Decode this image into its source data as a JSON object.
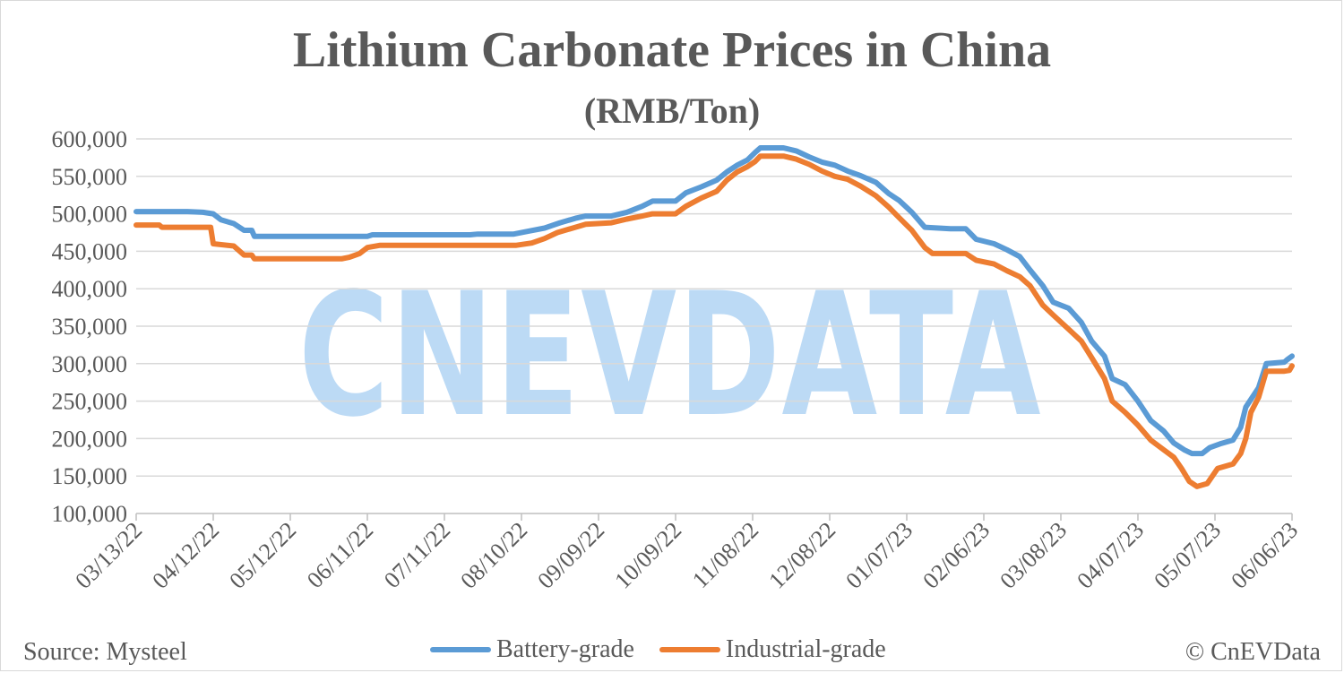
{
  "chart_data": {
    "type": "line",
    "title": "Lithium Carbonate Prices in China",
    "subtitle": "(RMB/Ton)",
    "ylim": [
      100000,
      600000
    ],
    "ytick_values": [
      100000,
      150000,
      200000,
      250000,
      300000,
      350000,
      400000,
      450000,
      500000,
      550000,
      600000
    ],
    "ytick_labels": [
      "100,000",
      "150,000",
      "200,000",
      "250,000",
      "300,000",
      "350,000",
      "400,000",
      "450,000",
      "500,000",
      "550,000",
      "600,000"
    ],
    "xlim": [
      "2022-03-13",
      "2023-06-06"
    ],
    "xtick_dates": [
      "2022-03-13",
      "2022-04-12",
      "2022-05-12",
      "2022-06-11",
      "2022-07-11",
      "2022-08-10",
      "2022-09-09",
      "2022-10-09",
      "2022-11-08",
      "2022-12-08",
      "2023-01-07",
      "2023-02-06",
      "2023-03-08",
      "2023-04-07",
      "2023-05-07",
      "2023-06-06"
    ],
    "xtick_labels": [
      "03/13/22",
      "04/12/22",
      "05/12/22",
      "06/11/22",
      "07/11/22",
      "08/10/22",
      "09/09/22",
      "10/09/22",
      "11/08/22",
      "12/08/22",
      "01/07/23",
      "02/06/23",
      "03/08/23",
      "04/07/23",
      "05/07/23",
      "06/06/23"
    ],
    "grid": true,
    "legend_position": "bottom",
    "series": [
      {
        "name": "Battery-grade",
        "color": "#5b9bd5",
        "points": [
          [
            "2022-03-13",
            503000
          ],
          [
            "2022-04-02",
            503000
          ],
          [
            "2022-04-08",
            502000
          ],
          [
            "2022-04-12",
            500000
          ],
          [
            "2022-04-15",
            492000
          ],
          [
            "2022-04-20",
            487000
          ],
          [
            "2022-04-24",
            478000
          ],
          [
            "2022-04-27",
            478000
          ],
          [
            "2022-04-28",
            470000
          ],
          [
            "2022-06-11",
            470000
          ],
          [
            "2022-06-13",
            472000
          ],
          [
            "2022-07-21",
            472000
          ],
          [
            "2022-07-24",
            473000
          ],
          [
            "2022-08-07",
            473000
          ],
          [
            "2022-08-13",
            477000
          ],
          [
            "2022-08-19",
            481000
          ],
          [
            "2022-08-25",
            488000
          ],
          [
            "2022-08-31",
            494000
          ],
          [
            "2022-09-04",
            497000
          ],
          [
            "2022-09-14",
            497000
          ],
          [
            "2022-09-20",
            502000
          ],
          [
            "2022-09-26",
            510000
          ],
          [
            "2022-09-30",
            517000
          ],
          [
            "2022-10-09",
            517000
          ],
          [
            "2022-10-13",
            528000
          ],
          [
            "2022-10-19",
            536000
          ],
          [
            "2022-10-25",
            545000
          ],
          [
            "2022-10-29",
            556000
          ],
          [
            "2022-11-02",
            565000
          ],
          [
            "2022-11-06",
            572000
          ],
          [
            "2022-11-09",
            582000
          ],
          [
            "2022-11-11",
            588000
          ],
          [
            "2022-11-20",
            588000
          ],
          [
            "2022-11-25",
            584000
          ],
          [
            "2022-11-30",
            576000
          ],
          [
            "2022-12-05",
            569000
          ],
          [
            "2022-12-10",
            565000
          ],
          [
            "2022-12-15",
            557000
          ],
          [
            "2022-12-20",
            551000
          ],
          [
            "2022-12-26",
            542000
          ],
          [
            "2022-12-31",
            527000
          ],
          [
            "2023-01-04",
            518000
          ],
          [
            "2023-01-09",
            502000
          ],
          [
            "2023-01-14",
            482000
          ],
          [
            "2023-01-24",
            480000
          ],
          [
            "2023-01-30",
            480000
          ],
          [
            "2023-02-03",
            466000
          ],
          [
            "2023-02-10",
            460000
          ],
          [
            "2023-02-15",
            452000
          ],
          [
            "2023-02-20",
            443000
          ],
          [
            "2023-02-24",
            425000
          ],
          [
            "2023-03-01",
            404000
          ],
          [
            "2023-03-05",
            382000
          ],
          [
            "2023-03-11",
            374000
          ],
          [
            "2023-03-16",
            355000
          ],
          [
            "2023-03-20",
            330000
          ],
          [
            "2023-03-25",
            310000
          ],
          [
            "2023-03-28",
            280000
          ],
          [
            "2023-04-02",
            272000
          ],
          [
            "2023-04-07",
            250000
          ],
          [
            "2023-04-12",
            224000
          ],
          [
            "2023-04-17",
            210000
          ],
          [
            "2023-04-21",
            194000
          ],
          [
            "2023-04-25",
            185000
          ],
          [
            "2023-04-28",
            180000
          ],
          [
            "2023-05-02",
            180000
          ],
          [
            "2023-05-05",
            188000
          ],
          [
            "2023-05-09",
            193000
          ],
          [
            "2023-05-14",
            198000
          ],
          [
            "2023-05-17",
            215000
          ],
          [
            "2023-05-19",
            242000
          ],
          [
            "2023-05-24",
            268000
          ],
          [
            "2023-05-27",
            300000
          ],
          [
            "2023-06-03",
            302000
          ],
          [
            "2023-06-04",
            305000
          ],
          [
            "2023-06-06",
            310000
          ]
        ]
      },
      {
        "name": "Industrial-grade",
        "color": "#ed7d31",
        "points": [
          [
            "2022-03-13",
            485000
          ],
          [
            "2022-03-22",
            485000
          ],
          [
            "2022-03-23",
            482000
          ],
          [
            "2022-04-11",
            482000
          ],
          [
            "2022-04-12",
            460000
          ],
          [
            "2022-04-20",
            457000
          ],
          [
            "2022-04-24",
            445000
          ],
          [
            "2022-04-27",
            445000
          ],
          [
            "2022-04-28",
            440000
          ],
          [
            "2022-06-01",
            440000
          ],
          [
            "2022-06-04",
            442000
          ],
          [
            "2022-06-08",
            447000
          ],
          [
            "2022-06-11",
            455000
          ],
          [
            "2022-06-16",
            458000
          ],
          [
            "2022-08-08",
            458000
          ],
          [
            "2022-08-14",
            461000
          ],
          [
            "2022-08-19",
            467000
          ],
          [
            "2022-08-24",
            475000
          ],
          [
            "2022-08-31",
            482000
          ],
          [
            "2022-09-04",
            486000
          ],
          [
            "2022-09-14",
            488000
          ],
          [
            "2022-09-20",
            493000
          ],
          [
            "2022-09-26",
            497000
          ],
          [
            "2022-09-30",
            500000
          ],
          [
            "2022-10-09",
            500000
          ],
          [
            "2022-10-13",
            510000
          ],
          [
            "2022-10-19",
            521000
          ],
          [
            "2022-10-25",
            530000
          ],
          [
            "2022-10-29",
            545000
          ],
          [
            "2022-11-02",
            556000
          ],
          [
            "2022-11-06",
            563000
          ],
          [
            "2022-11-09",
            570000
          ],
          [
            "2022-11-11",
            577000
          ],
          [
            "2022-11-20",
            577000
          ],
          [
            "2022-11-25",
            573000
          ],
          [
            "2022-11-30",
            566000
          ],
          [
            "2022-12-05",
            557000
          ],
          [
            "2022-12-10",
            550000
          ],
          [
            "2022-12-15",
            546000
          ],
          [
            "2022-12-20",
            537000
          ],
          [
            "2022-12-26",
            524000
          ],
          [
            "2022-12-31",
            509000
          ],
          [
            "2023-01-04",
            495000
          ],
          [
            "2023-01-09",
            478000
          ],
          [
            "2023-01-14",
            455000
          ],
          [
            "2023-01-17",
            447000
          ],
          [
            "2023-01-30",
            447000
          ],
          [
            "2023-02-03",
            438000
          ],
          [
            "2023-02-10",
            433000
          ],
          [
            "2023-02-15",
            424000
          ],
          [
            "2023-02-20",
            416000
          ],
          [
            "2023-02-24",
            404000
          ],
          [
            "2023-03-01",
            378000
          ],
          [
            "2023-03-05",
            365000
          ],
          [
            "2023-03-11",
            346000
          ],
          [
            "2023-03-16",
            330000
          ],
          [
            "2023-03-20",
            308000
          ],
          [
            "2023-03-25",
            280000
          ],
          [
            "2023-03-28",
            250000
          ],
          [
            "2023-04-02",
            235000
          ],
          [
            "2023-04-07",
            218000
          ],
          [
            "2023-04-12",
            198000
          ],
          [
            "2023-04-17",
            185000
          ],
          [
            "2023-04-21",
            175000
          ],
          [
            "2023-04-24",
            160000
          ],
          [
            "2023-04-27",
            143000
          ],
          [
            "2023-04-30",
            136000
          ],
          [
            "2023-05-04",
            140000
          ],
          [
            "2023-05-08",
            160000
          ],
          [
            "2023-05-14",
            166000
          ],
          [
            "2023-05-17",
            180000
          ],
          [
            "2023-05-19",
            200000
          ],
          [
            "2023-05-21",
            235000
          ],
          [
            "2023-05-24",
            255000
          ],
          [
            "2023-05-27",
            290000
          ],
          [
            "2023-06-03",
            290000
          ],
          [
            "2023-06-05",
            291000
          ],
          [
            "2023-06-06",
            297000
          ]
        ]
      }
    ]
  },
  "watermark": "CNEVDATA",
  "footer": {
    "source": "Source: Mysteel",
    "copyright": "© CnEVData"
  }
}
